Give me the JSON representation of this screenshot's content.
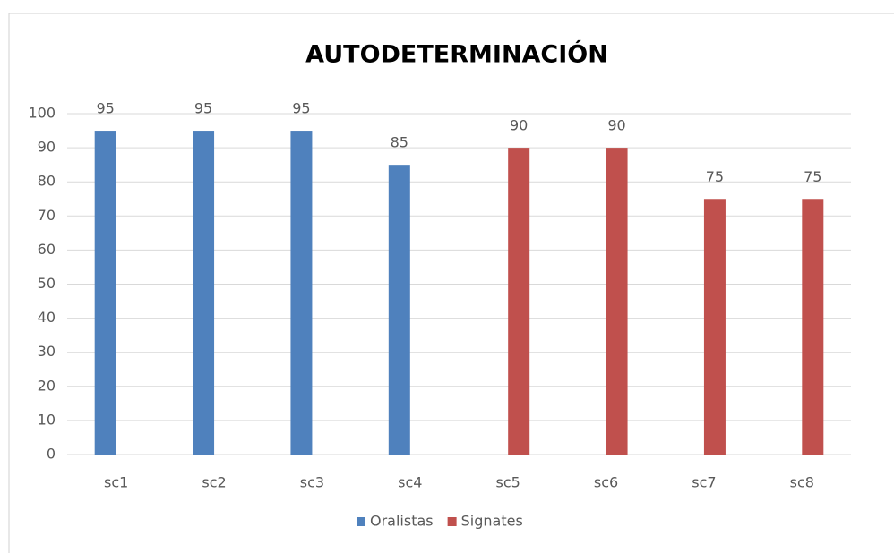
{
  "chart_data": {
    "type": "bar",
    "title": "AUTODETERMINACIÓN",
    "categories": [
      "sc1",
      "sc2",
      "sc3",
      "sc4",
      "sc5",
      "sc6",
      "sc7",
      "sc8"
    ],
    "series": [
      {
        "name": "Oralistas",
        "color": "#4f81bd",
        "values": [
          95,
          95,
          95,
          85,
          null,
          null,
          null,
          null
        ]
      },
      {
        "name": "Signates",
        "color": "#c0504d",
        "values": [
          null,
          null,
          null,
          null,
          90,
          90,
          75,
          75
        ]
      }
    ],
    "ylim": [
      0,
      100
    ],
    "yticks": [
      0,
      10,
      20,
      30,
      40,
      50,
      60,
      70,
      80,
      90,
      100
    ],
    "grid": true,
    "legend": "bottom"
  }
}
